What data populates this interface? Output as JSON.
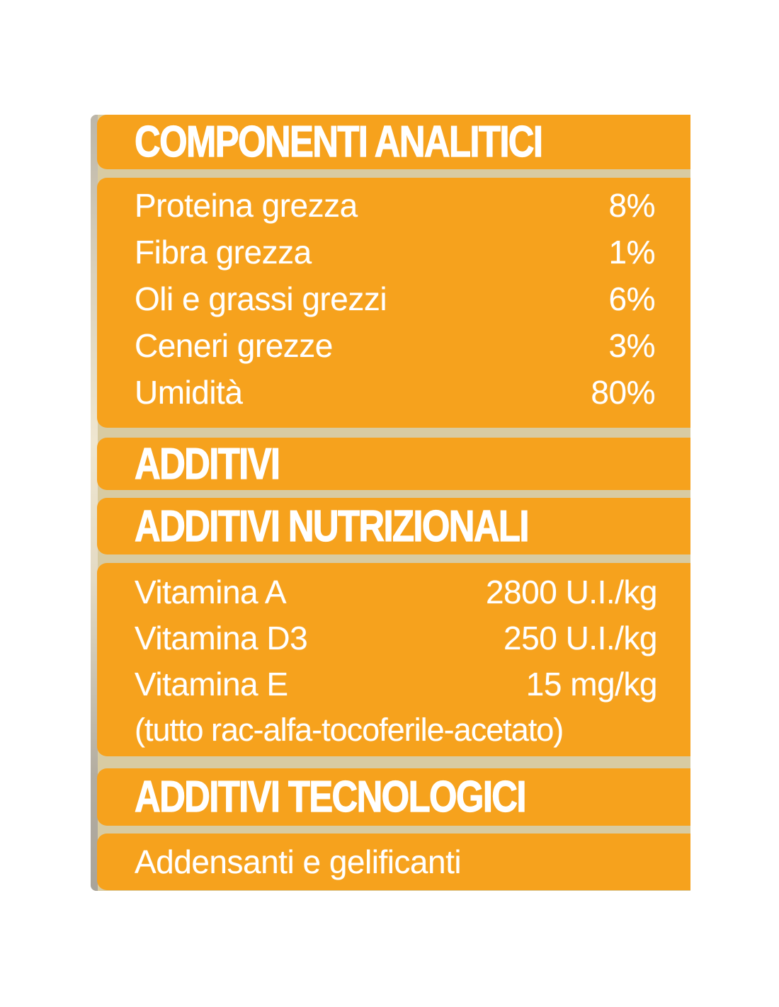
{
  "label": {
    "colors": {
      "bar_orange": "#f6a21d",
      "gap_beige": "#d8cba2",
      "edge_strip": "#d9d0bb",
      "text": "#ffffff"
    },
    "analytical": {
      "title": "COMPONENTI ANALITICI",
      "rows": [
        {
          "label": "Proteina grezza",
          "value": "8%"
        },
        {
          "label": "Fibra grezza",
          "value": "1%"
        },
        {
          "label": "Oli e grassi grezzi",
          "value": "6%"
        },
        {
          "label": "Ceneri grezze",
          "value": "3%"
        },
        {
          "label": "Umidità",
          "value": "80%"
        }
      ]
    },
    "additives": {
      "title": "ADDITIVI"
    },
    "nutritional": {
      "title": "ADDITIVI NUTRIZIONALI",
      "rows": [
        {
          "label": "Vitamina A",
          "value": "2800 U.I./kg"
        },
        {
          "label": "Vitamina D3",
          "value": "250 U.I./kg"
        },
        {
          "label": "Vitamina E",
          "value": "15 mg/kg"
        }
      ],
      "note": "(tutto rac-alfa-tocoferile-acetato)"
    },
    "technological": {
      "title": "ADDITIVI TECNOLOGICI",
      "content": "Addensanti e gelificanti"
    }
  }
}
